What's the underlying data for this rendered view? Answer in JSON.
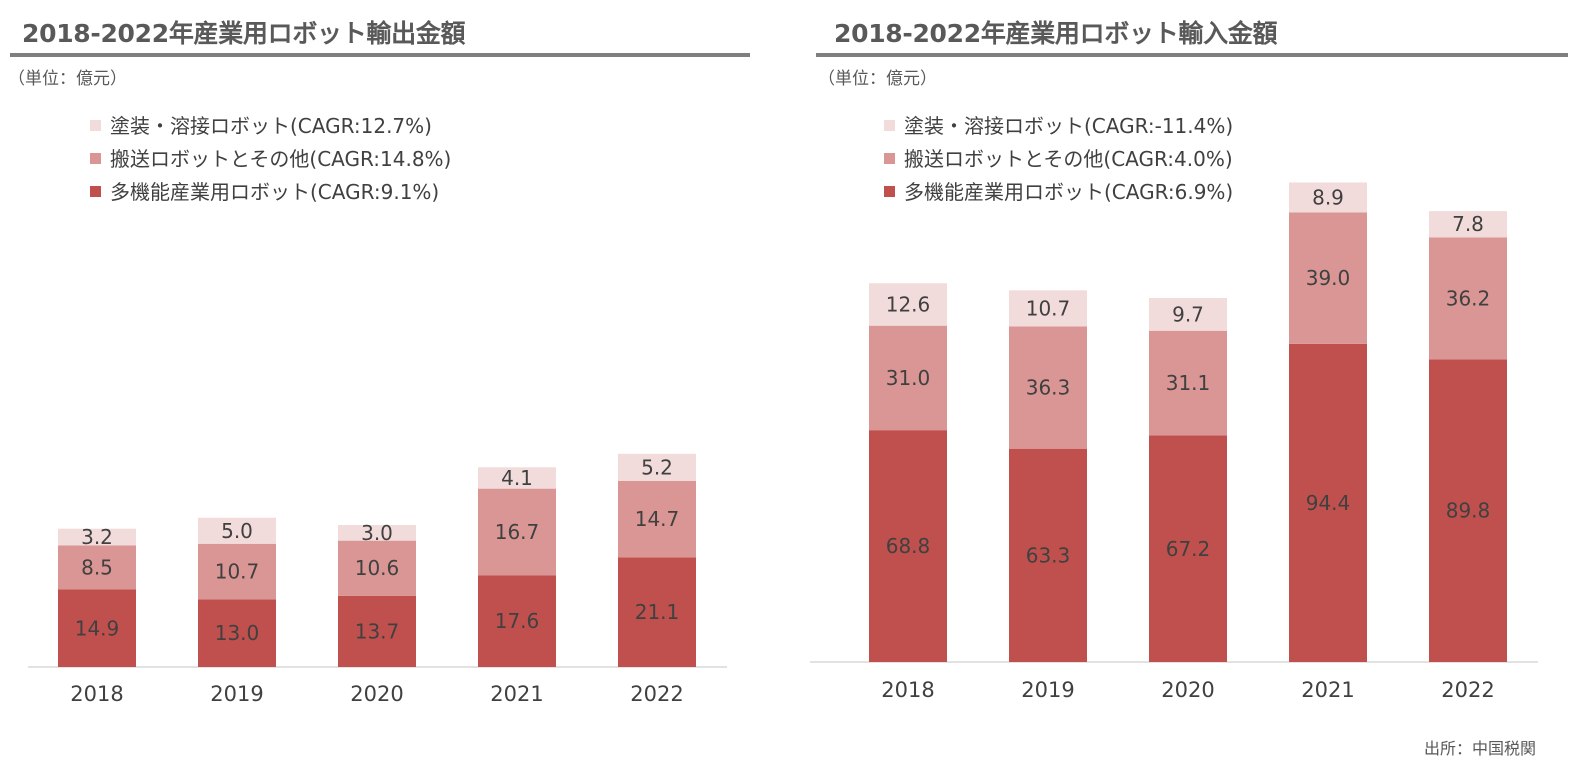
{
  "source": "出所：中国税関",
  "colors": {
    "segment1": "#c0504d",
    "segment2": "#da9694",
    "segment3": "#f2dcdb",
    "axis": "#d9d9d9",
    "title_rule": "#7f7f7f"
  },
  "chart_data": [
    {
      "type": "bar",
      "stacked": true,
      "title": "2018-2022年産業用ロボット輸出金額",
      "unit_label": "（単位：億元）",
      "categories": [
        "2018",
        "2019",
        "2020",
        "2021",
        "2022"
      ],
      "series": [
        {
          "name": "多機能産業用ロボット(CAGR:9.1%)",
          "values": [
            14.9,
            13.0,
            13.7,
            17.6,
            21.1
          ]
        },
        {
          "name": "搬送ロボットとその他(CAGR:14.8%)",
          "values": [
            8.5,
            10.7,
            10.6,
            16.7,
            14.7
          ]
        },
        {
          "name": "塗装・溶接ロボット(CAGR:12.7%)",
          "values": [
            3.2,
            5.0,
            3.0,
            4.1,
            5.2
          ]
        }
      ],
      "data_labels": [
        [
          "14.9",
          "13.0",
          "13.7",
          "17.6",
          "21.1"
        ],
        [
          "8.5",
          "10.7",
          "10.6",
          "16.7",
          "14.7"
        ],
        [
          "3.2",
          "5.0",
          "3.0",
          "4.1",
          "5.2"
        ]
      ],
      "legend": "top-left",
      "grid": false
    },
    {
      "type": "bar",
      "stacked": true,
      "title": "2018-2022年産業用ロボット輸入金額",
      "unit_label": "（単位：億元）",
      "categories": [
        "2018",
        "2019",
        "2020",
        "2021",
        "2022"
      ],
      "series": [
        {
          "name": "多機能産業用ロボット(CAGR:6.9%)",
          "values": [
            68.8,
            63.3,
            67.2,
            94.4,
            89.8
          ]
        },
        {
          "name": "搬送ロボットとその他(CAGR:4.0%)",
          "values": [
            31.0,
            36.3,
            31.1,
            39.0,
            36.2
          ]
        },
        {
          "name": "塗装・溶接ロボット(CAGR:-11.4%)",
          "values": [
            12.6,
            10.7,
            9.7,
            8.9,
            7.8
          ]
        }
      ],
      "data_labels": [
        [
          "68.8",
          "63.3",
          "67.2",
          "94.4",
          "89.8"
        ],
        [
          "31.0",
          "36.3",
          "31.1",
          "39.0",
          "36.2"
        ],
        [
          "12.6",
          "10.7",
          "9.7",
          "8.9",
          "7.8"
        ]
      ],
      "legend": "top-left",
      "grid": false
    }
  ]
}
